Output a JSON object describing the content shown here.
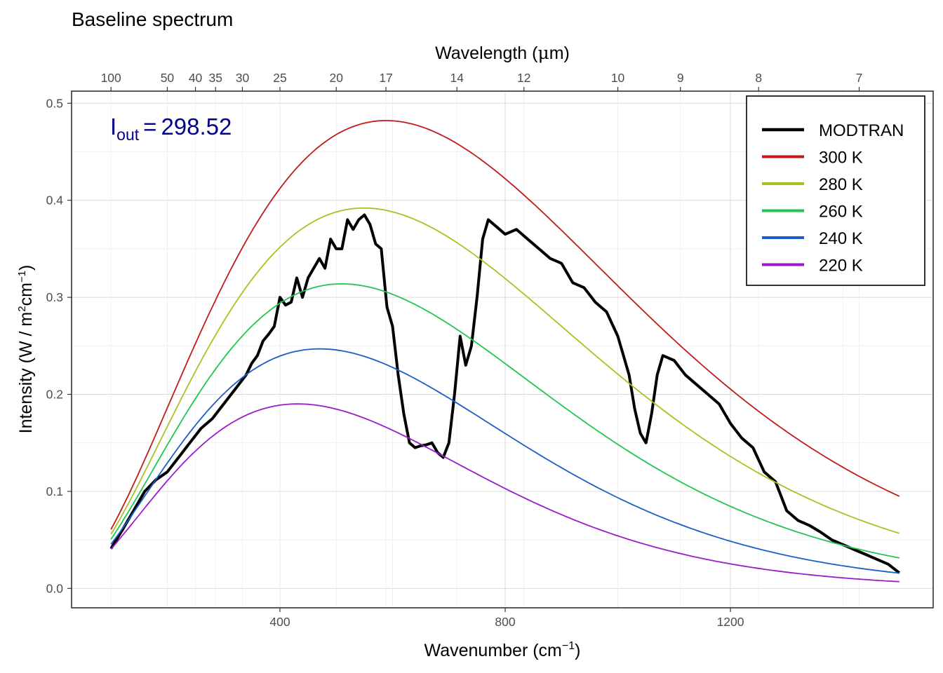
{
  "chart_data": {
    "type": "line",
    "title": "Baseline spectrum",
    "annotation": {
      "label_main": "I",
      "label_sub": "out",
      "equals": "=",
      "value": "298.52",
      "color": "#00008b"
    },
    "xlabel": {
      "text": "Wavenumber (cm",
      "sup": "−1",
      "close": ")"
    },
    "ylabel": {
      "text": "Intensity (W / m",
      "sup1": "2",
      "mid": "cm",
      "sup2": "−1",
      "close": ")"
    },
    "x2label": {
      "text": "Wavelength (",
      "mu": "μ",
      "unit": "m)"
    },
    "xlim": [
      30,
      1560
    ],
    "ylim": [
      -0.02,
      0.5125
    ],
    "x_range": [
      100,
      1500
    ],
    "x_ticks": [
      400,
      800,
      1200
    ],
    "x_tick_labels": [
      "400",
      "800",
      "1200"
    ],
    "y_ticks": [
      0.0,
      0.1,
      0.2,
      0.3,
      0.4,
      0.5
    ],
    "y_tick_labels": [
      "0.0",
      "0.1",
      "0.2",
      "0.3",
      "0.4",
      "0.5"
    ],
    "x2_ticks": [
      100,
      50,
      40,
      35,
      30,
      25,
      20,
      17,
      14,
      12,
      10,
      9,
      8,
      7
    ],
    "x2_tick_labels": [
      "100",
      "50",
      "40",
      "35",
      "30",
      "25",
      "20",
      "17",
      "14",
      "12",
      "10",
      "9",
      "8",
      "7"
    ],
    "grid": true,
    "legend_position": "top-right",
    "series": [
      {
        "name": "MODTRAN",
        "color": "#000000",
        "x": [
          100,
          120,
          140,
          160,
          180,
          200,
          220,
          240,
          260,
          280,
          300,
          320,
          340,
          350,
          360,
          370,
          380,
          390,
          400,
          410,
          420,
          430,
          440,
          450,
          460,
          470,
          480,
          490,
          500,
          510,
          520,
          530,
          540,
          550,
          560,
          570,
          580,
          590,
          600,
          610,
          620,
          630,
          640,
          650,
          660,
          670,
          680,
          690,
          700,
          710,
          720,
          730,
          740,
          750,
          760,
          770,
          780,
          790,
          800,
          820,
          840,
          860,
          880,
          900,
          920,
          940,
          960,
          980,
          1000,
          1020,
          1030,
          1040,
          1050,
          1060,
          1070,
          1080,
          1100,
          1120,
          1140,
          1160,
          1180,
          1200,
          1220,
          1240,
          1260,
          1280,
          1300,
          1320,
          1340,
          1360,
          1380,
          1400,
          1420,
          1440,
          1460,
          1480,
          1500
        ],
        "values": [
          0.041,
          0.06,
          0.08,
          0.1,
          0.112,
          0.12,
          0.135,
          0.15,
          0.165,
          0.175,
          0.19,
          0.205,
          0.22,
          0.232,
          0.24,
          0.255,
          0.262,
          0.27,
          0.3,
          0.292,
          0.295,
          0.32,
          0.3,
          0.32,
          0.33,
          0.34,
          0.33,
          0.36,
          0.35,
          0.35,
          0.38,
          0.37,
          0.38,
          0.385,
          0.375,
          0.355,
          0.35,
          0.29,
          0.27,
          0.22,
          0.18,
          0.15,
          0.145,
          0.147,
          0.148,
          0.15,
          0.14,
          0.135,
          0.15,
          0.2,
          0.26,
          0.23,
          0.25,
          0.3,
          0.36,
          0.38,
          0.375,
          0.37,
          0.365,
          0.37,
          0.36,
          0.35,
          0.34,
          0.335,
          0.315,
          0.31,
          0.295,
          0.285,
          0.26,
          0.22,
          0.185,
          0.16,
          0.15,
          0.18,
          0.22,
          0.24,
          0.235,
          0.22,
          0.21,
          0.2,
          0.19,
          0.17,
          0.155,
          0.145,
          0.12,
          0.11,
          0.08,
          0.07,
          0.065,
          0.058,
          0.05,
          0.045,
          0.04,
          0.035,
          0.03,
          0.025,
          0.016
        ]
      },
      {
        "name": "300 K",
        "color": "#c01a1a",
        "temperature": 300
      },
      {
        "name": "280 K",
        "color": "#a7c221",
        "temperature": 280
      },
      {
        "name": "260 K",
        "color": "#20c650",
        "temperature": 260
      },
      {
        "name": "240 K",
        "color": "#1b5ec7",
        "temperature": 240
      },
      {
        "name": "220 K",
        "color": "#9b1bcb",
        "temperature": 220
      }
    ]
  }
}
